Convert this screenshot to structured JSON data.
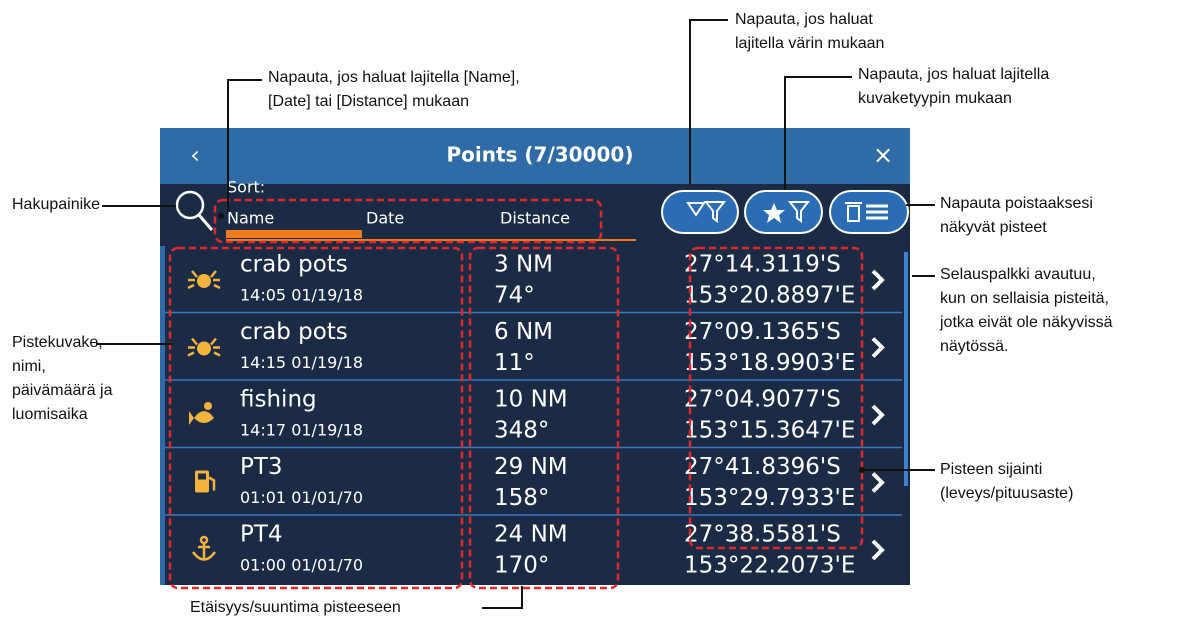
{
  "screen": {
    "title": "Points (7/30000)",
    "sort_label": "Sort:",
    "sort_options": [
      "Name",
      "Date",
      "Distance"
    ],
    "rows": [
      {
        "name": "crab pots",
        "datetime": "14:05 01/19/18",
        "distance": "3 NM",
        "bearing": "74°",
        "lat": "27°14.3119'S",
        "lon": "153°20.8897'E"
      },
      {
        "name": "crab pots",
        "datetime": "14:15 01/19/18",
        "distance": "6 NM",
        "bearing": "11°",
        "lat": "27°09.1365'S",
        "lon": "153°18.9903'E"
      },
      {
        "name": "fishing",
        "datetime": "14:17 01/19/18",
        "distance": "10 NM",
        "bearing": "348°",
        "lat": "27°04.9077'S",
        "lon": "153°15.3647'E"
      },
      {
        "name": "PT3",
        "datetime": "01:01 01/01/70",
        "distance": "29 NM",
        "bearing": "158°",
        "lat": "27°41.8396'S",
        "lon": "153°29.7933'E"
      },
      {
        "name": "PT4",
        "datetime": "01:00 01/01/70",
        "distance": "24 NM",
        "bearing": "170°",
        "lat": "27°38.5581'S",
        "lon": "153°22.2073'E"
      }
    ]
  },
  "callouts": {
    "sort": [
      "Napauta, jos haluat lajitella [Name],",
      "[Date] tai [Distance] mukaan"
    ],
    "color_filter": [
      "Napauta, jos haluat",
      "lajitella värin mukaan"
    ],
    "icon_filter": [
      "Napauta, jos haluat lajitella",
      "kuvaketyypin mukaan"
    ],
    "search": [
      "Hakupainike"
    ],
    "delete": [
      "Napauta poistaaksesi",
      "näkyvät pisteet"
    ],
    "scrollbar": [
      "Selauspalkki avautuu,",
      "kun on sellaisia pisteitä,",
      "jotka eivät ole näkyvissä",
      "näytössä."
    ],
    "icon_name": [
      "Pistekuvake,",
      "nimi,",
      "päivämäärä ja",
      "luomisaika"
    ],
    "position": [
      "Pisteen sijainti",
      "(leveys/pituusaste)"
    ],
    "distance": [
      "Etäisyys/suuntima pisteeseen"
    ]
  }
}
